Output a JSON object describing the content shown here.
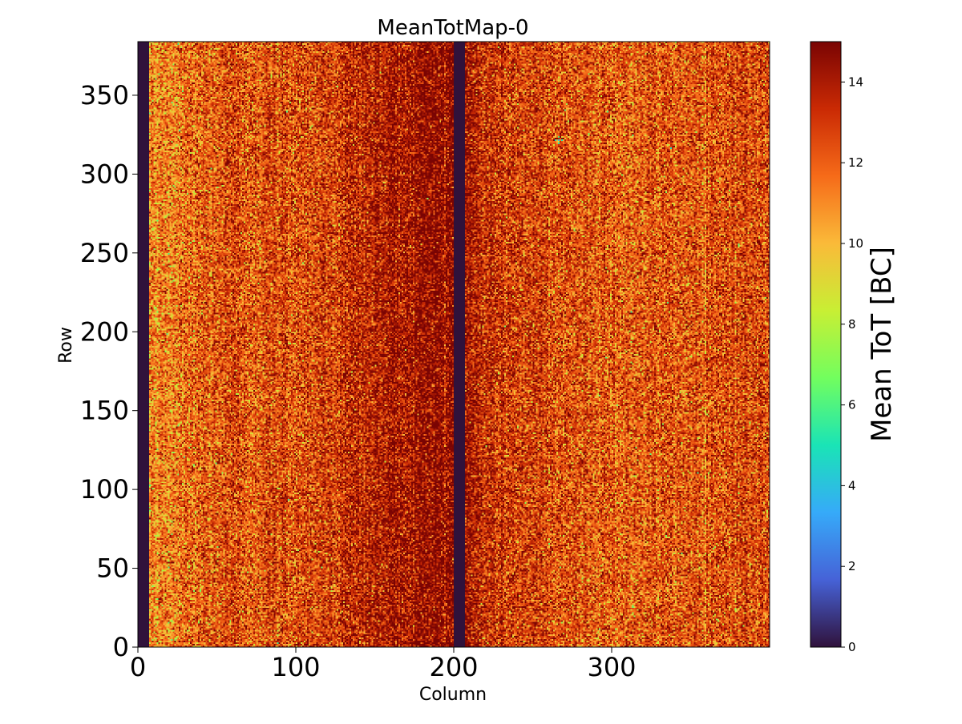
{
  "chart_data": {
    "type": "heatmap",
    "title": "MeanTotMap-0",
    "xlabel": "Column",
    "ylabel": "Row",
    "colorbar_label": "Mean ToT [BC]",
    "n_columns": 400,
    "n_rows": 384,
    "xlim": [
      0,
      400
    ],
    "ylim": [
      0,
      384
    ],
    "clim": [
      0,
      15
    ],
    "x_ticks": [
      0,
      100,
      200,
      300
    ],
    "y_ticks": [
      0,
      50,
      100,
      150,
      200,
      250,
      300,
      350
    ],
    "colorbar_ticks": [
      0,
      2,
      4,
      6,
      8,
      10,
      12,
      14
    ],
    "colormap": "turbo",
    "colormap_stops": [
      "#30123b",
      "#4662d7",
      "#36aaf9",
      "#1ae4b6",
      "#72fe5e",
      "#c8ef34",
      "#faba39",
      "#f66b19",
      "#ca2a04",
      "#7a0403"
    ],
    "dead_column_ranges": [
      [
        0,
        7
      ],
      [
        200,
        207
      ]
    ],
    "dead_value": 0,
    "column_profile_mean_tot": [
      [
        7,
        11.0
      ],
      [
        20,
        11.2
      ],
      [
        40,
        12.0
      ],
      [
        60,
        12.4
      ],
      [
        80,
        12.3
      ],
      [
        100,
        12.5
      ],
      [
        120,
        12.8
      ],
      [
        140,
        13.4
      ],
      [
        160,
        14.0
      ],
      [
        180,
        14.5
      ],
      [
        200,
        14.8
      ],
      [
        207,
        14.3
      ],
      [
        220,
        13.3
      ],
      [
        240,
        12.8
      ],
      [
        260,
        12.5
      ],
      [
        280,
        12.3
      ],
      [
        300,
        12.2
      ],
      [
        320,
        12.0
      ],
      [
        340,
        12.3
      ],
      [
        360,
        12.4
      ],
      [
        380,
        12.6
      ],
      [
        400,
        12.5
      ]
    ],
    "pixel_noise_spread": 1.6,
    "low_value_pixels": [
      {
        "column": 266,
        "row": 321,
        "value": 4
      },
      {
        "column": 264,
        "row": 321,
        "value": 5
      },
      {
        "column": 268,
        "row": 321,
        "value": 5
      },
      {
        "column": 266,
        "row": 319,
        "value": 5
      },
      {
        "column": 266,
        "row": 323,
        "value": 6
      },
      {
        "column": 183,
        "row": 284,
        "value": 7
      }
    ]
  }
}
